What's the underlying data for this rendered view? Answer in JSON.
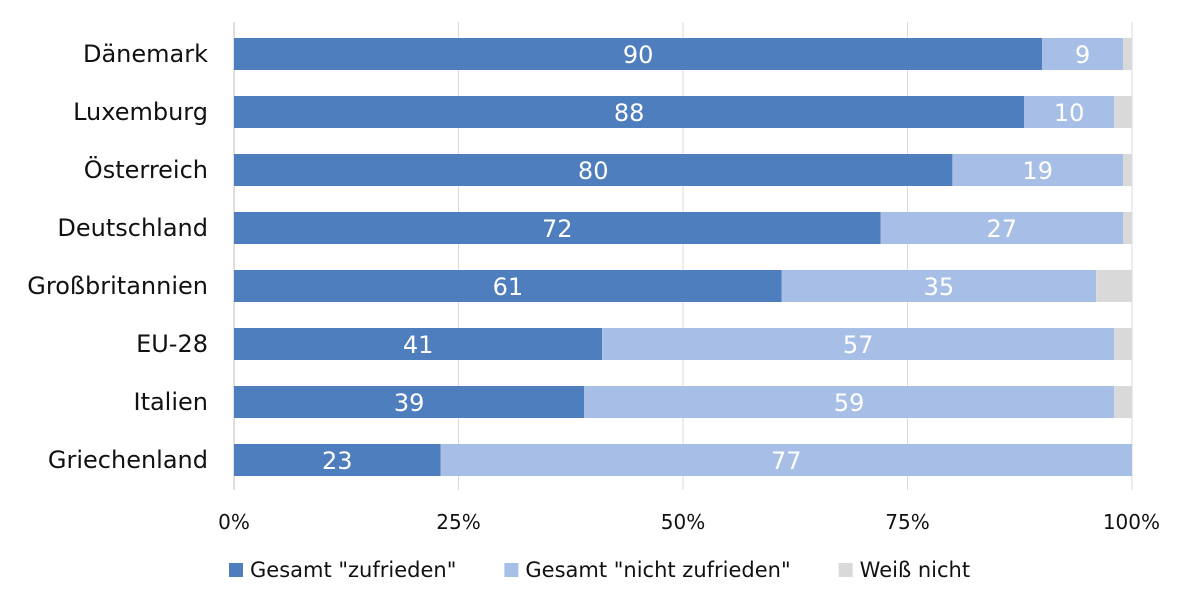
{
  "chart_data": {
    "type": "bar",
    "orientation": "horizontal",
    "stacked": true,
    "categories": [
      "Dänemark",
      "Luxemburg",
      "Österreich",
      "Deutschland",
      "Großbritannien",
      "EU-28",
      "Italien",
      "Griechenland"
    ],
    "series": [
      {
        "name": "Gesamt \"zufrieden\"",
        "color": "#4f7ebf",
        "values": [
          90,
          88,
          80,
          72,
          61,
          41,
          39,
          23
        ]
      },
      {
        "name": "Gesamt \"nicht zufrieden\"",
        "color": "#a7bfe7",
        "values": [
          9,
          10,
          19,
          27,
          35,
          57,
          59,
          77
        ]
      },
      {
        "name": "Weiß nicht",
        "color": "#d9d9d9",
        "values": [
          1,
          2,
          1,
          1,
          4,
          2,
          2,
          0
        ]
      }
    ],
    "labeled_series": [
      0,
      1
    ],
    "xlim": [
      0,
      100
    ],
    "x_ticks": [
      0,
      25,
      50,
      75,
      100
    ],
    "x_tick_labels": [
      "0%",
      "25%",
      "50%",
      "75%",
      "100%"
    ],
    "grid": "vertical",
    "legend": "bottom",
    "title": "",
    "xlabel": "",
    "ylabel": ""
  }
}
